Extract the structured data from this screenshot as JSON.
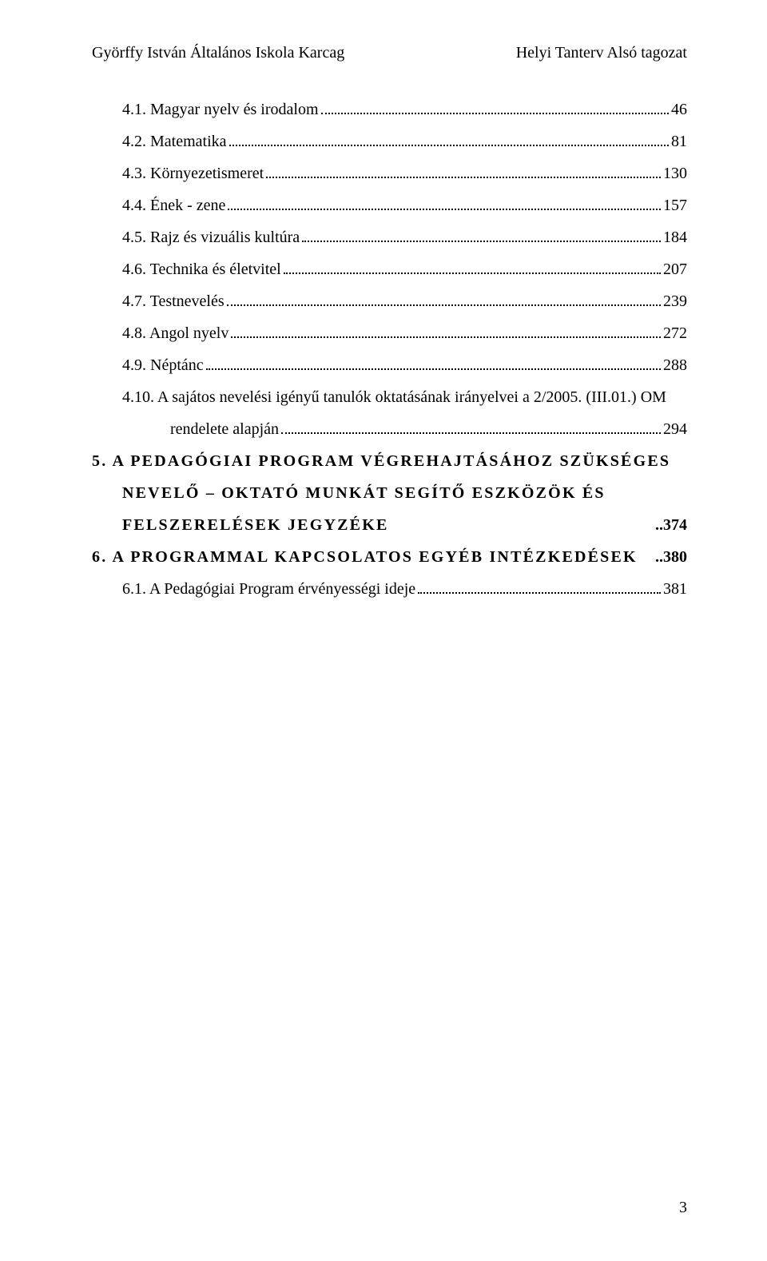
{
  "header": {
    "left": "Györffy István Általános Iskola Karcag",
    "right": "Helyi Tanterv Alsó tagozat"
  },
  "toc": {
    "items": [
      {
        "label": "4.1. Magyar nyelv és irodalom",
        "page": "46",
        "dots": true,
        "indent": "indent-1",
        "bold": false,
        "spaced": false
      },
      {
        "label": "4.2. Matematika",
        "page": "81",
        "dots": true,
        "indent": "indent-1",
        "bold": false,
        "spaced": false
      },
      {
        "label": "4.3. Környezetismeret",
        "page": "130",
        "dots": true,
        "indent": "indent-1",
        "bold": false,
        "spaced": false
      },
      {
        "label": "4.4. Ének - zene",
        "page": "157",
        "dots": true,
        "indent": "indent-1",
        "bold": false,
        "spaced": false
      },
      {
        "label": "4.5. Rajz és vizuális kultúra",
        "page": "184",
        "dots": true,
        "indent": "indent-1",
        "bold": false,
        "spaced": false
      },
      {
        "label": "4.6. Technika és életvitel",
        "page": "207",
        "dots": true,
        "indent": "indent-1",
        "bold": false,
        "spaced": false
      },
      {
        "label": "4.7. Testnevelés",
        "page": "239",
        "dots": true,
        "indent": "indent-1",
        "bold": false,
        "spaced": false
      },
      {
        "label": "4.8. Angol nyelv",
        "page": "272",
        "dots": true,
        "indent": "indent-1",
        "bold": false,
        "spaced": false
      },
      {
        "label": "4.9. Néptánc",
        "page": "288",
        "dots": true,
        "indent": "indent-1",
        "bold": false,
        "spaced": false
      },
      {
        "label": "4.10. A sajátos nevelési igényű tanulók oktatásának irányelvei a 2/2005. (III.01.) OM",
        "page": "",
        "dots": false,
        "indent": "indent-1",
        "bold": false,
        "spaced": false,
        "nobreak": true
      },
      {
        "label": "rendelete alapján",
        "page": "294",
        "dots": true,
        "indent": "wrap-indent",
        "bold": false,
        "spaced": false
      },
      {
        "label": "5. A PEDAGÓGIAI PROGRAM VÉGREHAJTÁSÁHOZ SZÜKSÉGES",
        "page": "",
        "dots": false,
        "indent": "",
        "bold": true,
        "spaced": true,
        "nobreak": true
      },
      {
        "label": "NEVELŐ – OKTATÓ MUNKÁT SEGÍTŐ ESZKÖZÖK ÉS",
        "page": "",
        "dots": false,
        "indent": "indent-1",
        "bold": true,
        "spaced": true,
        "nobreak": true
      },
      {
        "label": "FELSZERELÉSEK JEGYZÉKE",
        "page": "374",
        "dots": false,
        "indent": "indent-1",
        "bold": true,
        "spaced": true,
        "fill": true
      },
      {
        "label": "6. A PROGRAMMAL KAPCSOLATOS EGYÉB INTÉZKEDÉSEK",
        "page": "380",
        "dots": false,
        "indent": "",
        "bold": true,
        "spaced": true,
        "fill": true
      },
      {
        "label": "6.1. A Pedagógiai Program érvényességi ideje",
        "page": "381",
        "dots": true,
        "indent": "indent-1",
        "bold": false,
        "spaced": false
      }
    ]
  },
  "page_number": "3"
}
